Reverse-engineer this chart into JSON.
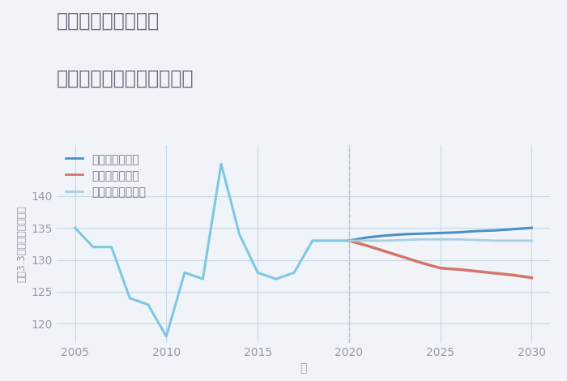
{
  "title_line1": "兵庫県白浜の宮駅の",
  "title_line2": "中古マンションの価格推移",
  "xlabel": "年",
  "ylabel": "坪（3.3㎡）単価（万円）",
  "bg_color": "#f0f4f8",
  "plot_bg_color": "#f0f4f8",
  "ylim": [
    117,
    148
  ],
  "xlim": [
    2004,
    2031
  ],
  "yticks": [
    120,
    125,
    130,
    135,
    140
  ],
  "xticks": [
    2005,
    2010,
    2015,
    2020,
    2025,
    2030
  ],
  "historical_years": [
    2005,
    2006,
    2007,
    2008,
    2009,
    2010,
    2011,
    2012,
    2013,
    2014,
    2015,
    2016,
    2017,
    2018,
    2019,
    2020
  ],
  "historical_values": [
    135,
    132,
    132,
    124,
    123,
    118,
    128,
    127,
    145,
    134,
    128,
    127,
    128,
    133,
    133,
    133
  ],
  "future_years": [
    2020,
    2021,
    2022,
    2023,
    2024,
    2025,
    2026,
    2027,
    2028,
    2029,
    2030
  ],
  "good_values": [
    133,
    133.5,
    133.8,
    134.0,
    134.1,
    134.2,
    134.3,
    134.5,
    134.6,
    134.8,
    135.0
  ],
  "bad_values": [
    133,
    132.2,
    131.3,
    130.4,
    129.5,
    128.7,
    128.5,
    128.2,
    127.9,
    127.6,
    127.2
  ],
  "normal_values": [
    133,
    133.0,
    133.0,
    133.1,
    133.2,
    133.2,
    133.2,
    133.1,
    133.0,
    133.0,
    133.0
  ],
  "historical_color": "#7ec8e3",
  "good_color": "#4a90c4",
  "bad_color": "#d4756b",
  "normal_color": "#a8cfe0",
  "vline_color": "#b0c4d8",
  "grid_color": "#c8d8e8",
  "title_color": "#666677",
  "legend_good": "グッドシナリオ",
  "legend_bad": "バッドシナリオ",
  "legend_normal": "ノーマルシナリオ",
  "title_fontsize": 17,
  "label_fontsize": 10,
  "tick_fontsize": 10,
  "legend_fontsize": 10
}
